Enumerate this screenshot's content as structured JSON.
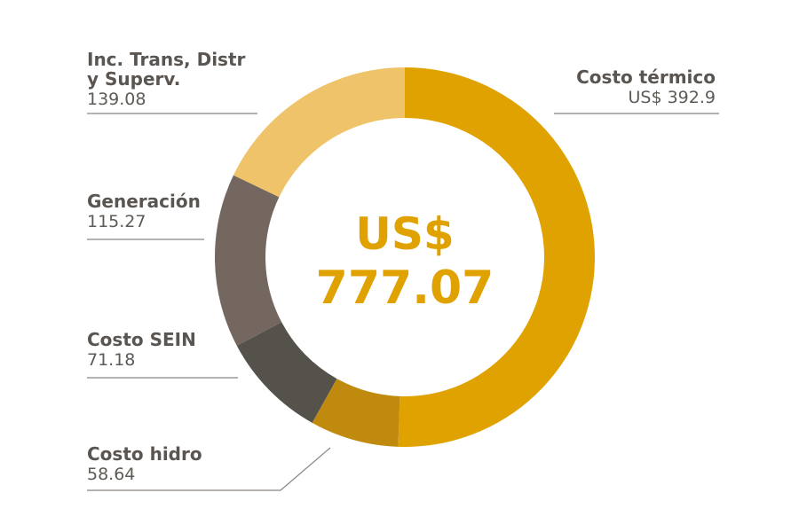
{
  "chart_data": {
    "type": "pie",
    "style": "donut",
    "title": "",
    "center_label": {
      "currency": "US$",
      "total": "777.07"
    },
    "categories": [
      "Costo térmico",
      "Costo hidro",
      "Costo SEIN",
      "Generación",
      "Inc. Trans, Distr y Superv."
    ],
    "values": [
      392.9,
      58.64,
      71.18,
      115.27,
      139.08
    ],
    "value_labels": [
      "US$ 392.9",
      "58.64",
      "71.18",
      "115.27",
      "139.08"
    ],
    "colors": [
      "#e0a200",
      "#c08a0f",
      "#54524a",
      "#736760",
      "#efc36a"
    ]
  }
}
